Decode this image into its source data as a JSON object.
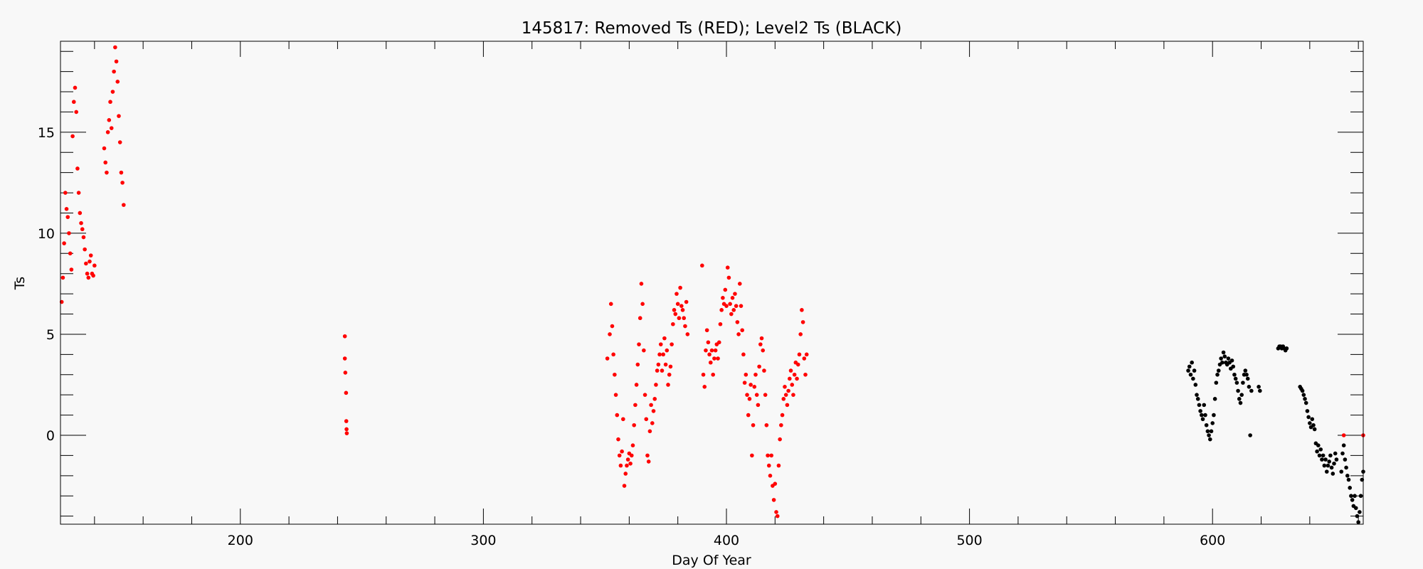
{
  "chart_data": {
    "type": "scatter",
    "title": "145817: Removed Ts (RED); Level2 Ts (BLACK)",
    "xlabel": "Day Of Year",
    "ylabel": "Ts",
    "xlim": [
      126,
      662
    ],
    "ylim": [
      -4.4,
      19.5
    ],
    "x_ticks": [
      200,
      300,
      400,
      500,
      600
    ],
    "y_ticks": [
      0,
      5,
      10,
      15
    ],
    "x_minor_step": 20,
    "y_minor_step": 1,
    "grid": false,
    "legend": "none",
    "series": [
      {
        "color": "#ff0000",
        "points": [
          [
            126.5,
            6.6
          ],
          [
            127,
            7.8
          ],
          [
            127.5,
            9.5
          ],
          [
            128,
            12.0
          ],
          [
            128.5,
            11.2
          ],
          [
            129,
            10.8
          ],
          [
            129.5,
            10.0
          ],
          [
            130,
            9.0
          ],
          [
            130.5,
            8.2
          ],
          [
            131,
            14.8
          ],
          [
            131.5,
            16.5
          ],
          [
            132,
            17.2
          ],
          [
            132.5,
            16.0
          ],
          [
            133,
            13.2
          ],
          [
            133.5,
            12.0
          ],
          [
            134,
            11.0
          ],
          [
            134.5,
            10.5
          ],
          [
            135,
            10.2
          ],
          [
            135.5,
            9.8
          ],
          [
            136,
            9.2
          ],
          [
            136.5,
            8.5
          ],
          [
            137,
            8.0
          ],
          [
            137.5,
            7.8
          ],
          [
            138,
            8.6
          ],
          [
            138.5,
            8.9
          ],
          [
            139,
            8.0
          ],
          [
            139.5,
            7.9
          ],
          [
            140,
            8.4
          ],
          [
            144,
            14.2
          ],
          [
            144.5,
            13.5
          ],
          [
            145,
            13.0
          ],
          [
            145.5,
            15.0
          ],
          [
            146,
            15.6
          ],
          [
            146.5,
            16.5
          ],
          [
            147,
            15.2
          ],
          [
            147.5,
            17.0
          ],
          [
            148,
            18.0
          ],
          [
            148.5,
            19.2
          ],
          [
            149,
            18.5
          ],
          [
            149.5,
            17.5
          ],
          [
            150,
            15.8
          ],
          [
            150.5,
            14.5
          ],
          [
            151,
            13.0
          ],
          [
            151.5,
            12.5
          ],
          [
            152,
            11.4
          ],
          [
            243,
            4.9
          ],
          [
            243,
            3.8
          ],
          [
            243.2,
            3.1
          ],
          [
            243.5,
            2.1
          ],
          [
            243.6,
            0.7
          ],
          [
            243.7,
            0.3
          ],
          [
            243.8,
            0.1
          ],
          [
            351,
            3.8
          ],
          [
            352,
            5.0
          ],
          [
            352.5,
            6.5
          ],
          [
            353,
            5.4
          ],
          [
            353.5,
            4.0
          ],
          [
            354,
            3.0
          ],
          [
            354.5,
            2.0
          ],
          [
            355,
            1.0
          ],
          [
            355.5,
            -0.2
          ],
          [
            356,
            -1.0
          ],
          [
            356.5,
            -1.5
          ],
          [
            357,
            -0.8
          ],
          [
            357.5,
            0.8
          ],
          [
            358,
            -2.5
          ],
          [
            358.5,
            -1.9
          ],
          [
            359,
            -1.5
          ],
          [
            359.5,
            -1.2
          ],
          [
            360,
            -0.9
          ],
          [
            360.5,
            -1.4
          ],
          [
            361,
            -1.0
          ],
          [
            361.5,
            -0.5
          ],
          [
            362,
            0.5
          ],
          [
            362.5,
            1.5
          ],
          [
            363,
            2.5
          ],
          [
            363.5,
            3.5
          ],
          [
            364,
            4.5
          ],
          [
            364.5,
            5.8
          ],
          [
            365,
            7.5
          ],
          [
            365.5,
            6.5
          ],
          [
            366,
            4.2
          ],
          [
            366.5,
            2.0
          ],
          [
            367,
            0.8
          ],
          [
            367.5,
            -1.0
          ],
          [
            368,
            -1.3
          ],
          [
            368.5,
            0.2
          ],
          [
            369,
            1.5
          ],
          [
            369.5,
            0.6
          ],
          [
            370,
            1.2
          ],
          [
            370.5,
            1.8
          ],
          [
            371,
            2.5
          ],
          [
            371.5,
            3.2
          ],
          [
            372,
            3.5
          ],
          [
            372.5,
            4.0
          ],
          [
            373,
            4.5
          ],
          [
            373.5,
            3.2
          ],
          [
            374,
            4.0
          ],
          [
            374.5,
            4.8
          ],
          [
            375,
            3.5
          ],
          [
            375.5,
            4.2
          ],
          [
            376,
            2.5
          ],
          [
            376.5,
            3.0
          ],
          [
            377,
            3.4
          ],
          [
            377.5,
            4.5
          ],
          [
            378,
            5.5
          ],
          [
            378.5,
            6.2
          ],
          [
            379,
            6.0
          ],
          [
            379.5,
            7.0
          ],
          [
            380,
            6.5
          ],
          [
            380.5,
            5.8
          ],
          [
            381,
            7.3
          ],
          [
            381.5,
            6.4
          ],
          [
            382,
            6.2
          ],
          [
            382.5,
            5.8
          ],
          [
            383,
            5.4
          ],
          [
            383.5,
            6.6
          ],
          [
            384,
            5.0
          ],
          [
            390,
            8.4
          ],
          [
            390.5,
            3.0
          ],
          [
            391,
            2.4
          ],
          [
            391.5,
            4.2
          ],
          [
            392,
            5.2
          ],
          [
            392.5,
            4.6
          ],
          [
            393,
            4.0
          ],
          [
            393.5,
            3.6
          ],
          [
            394,
            4.2
          ],
          [
            394.5,
            3.0
          ],
          [
            395,
            3.8
          ],
          [
            395.5,
            4.2
          ],
          [
            396,
            4.5
          ],
          [
            396.5,
            3.8
          ],
          [
            397,
            4.6
          ],
          [
            397.5,
            5.5
          ],
          [
            398,
            6.2
          ],
          [
            398.5,
            6.8
          ],
          [
            399,
            6.5
          ],
          [
            399.5,
            7.2
          ],
          [
            400,
            6.4
          ],
          [
            400.5,
            8.3
          ],
          [
            401,
            7.8
          ],
          [
            401.5,
            6.5
          ],
          [
            402,
            6.0
          ],
          [
            402.5,
            6.8
          ],
          [
            403,
            6.2
          ],
          [
            403.5,
            7.0
          ],
          [
            404,
            6.4
          ],
          [
            404.5,
            5.6
          ],
          [
            405,
            5.0
          ],
          [
            405.5,
            7.5
          ],
          [
            406,
            6.4
          ],
          [
            406.5,
            5.2
          ],
          [
            407,
            4.0
          ],
          [
            407.5,
            2.6
          ],
          [
            408,
            3.0
          ],
          [
            408.5,
            2.0
          ],
          [
            409,
            1.0
          ],
          [
            409.5,
            1.8
          ],
          [
            410,
            2.5
          ],
          [
            410.5,
            -1.0
          ],
          [
            411,
            0.5
          ],
          [
            411.5,
            2.4
          ],
          [
            412,
            3.0
          ],
          [
            412.5,
            2.0
          ],
          [
            413,
            1.5
          ],
          [
            413.5,
            3.4
          ],
          [
            414,
            4.5
          ],
          [
            414.5,
            4.8
          ],
          [
            415,
            4.2
          ],
          [
            415.5,
            3.2
          ],
          [
            416,
            2.0
          ],
          [
            416.5,
            0.5
          ],
          [
            417,
            -1.0
          ],
          [
            417.5,
            -1.5
          ],
          [
            418,
            -2.0
          ],
          [
            418.5,
            -1.0
          ],
          [
            419,
            -2.5
          ],
          [
            419.5,
            -3.2
          ],
          [
            420,
            -2.4
          ],
          [
            420.5,
            -3.8
          ],
          [
            421,
            -4.0
          ],
          [
            421.5,
            -1.5
          ],
          [
            422,
            -0.2
          ],
          [
            422.5,
            0.5
          ],
          [
            423,
            1.0
          ],
          [
            423.5,
            1.8
          ],
          [
            424,
            2.4
          ],
          [
            424.5,
            2.0
          ],
          [
            425,
            1.5
          ],
          [
            425.5,
            2.2
          ],
          [
            426,
            2.8
          ],
          [
            426.5,
            3.2
          ],
          [
            427,
            2.5
          ],
          [
            427.5,
            2.0
          ],
          [
            428,
            3.0
          ],
          [
            428.5,
            3.6
          ],
          [
            429,
            2.8
          ],
          [
            429.5,
            3.5
          ],
          [
            430,
            4.0
          ],
          [
            430.5,
            5.0
          ],
          [
            431,
            6.2
          ],
          [
            431.5,
            5.6
          ],
          [
            432,
            3.8
          ],
          [
            432.5,
            3.0
          ],
          [
            433,
            4.0
          ],
          [
            654,
            0
          ],
          [
            662,
            0
          ]
        ]
      },
      {
        "color": "#000000",
        "points": [
          [
            590,
            3.2
          ],
          [
            590.5,
            3.4
          ],
          [
            591,
            3.0
          ],
          [
            591.5,
            3.6
          ],
          [
            592,
            2.8
          ],
          [
            592.5,
            3.2
          ],
          [
            593,
            2.5
          ],
          [
            593.5,
            2.0
          ],
          [
            594,
            1.8
          ],
          [
            594.5,
            1.5
          ],
          [
            595,
            1.2
          ],
          [
            595.5,
            1.0
          ],
          [
            596,
            0.8
          ],
          [
            596.5,
            1.5
          ],
          [
            597,
            1.0
          ],
          [
            597.5,
            0.5
          ],
          [
            598,
            0.2
          ],
          [
            598.5,
            0.0
          ],
          [
            599,
            -0.2
          ],
          [
            599.5,
            0.2
          ],
          [
            600,
            0.6
          ],
          [
            600.5,
            1.0
          ],
          [
            601,
            1.8
          ],
          [
            601.5,
            2.6
          ],
          [
            602,
            3.0
          ],
          [
            602.5,
            3.2
          ],
          [
            603,
            3.5
          ],
          [
            603.5,
            3.8
          ],
          [
            604,
            3.6
          ],
          [
            604.5,
            4.1
          ],
          [
            605,
            3.9
          ],
          [
            605.5,
            3.6
          ],
          [
            606,
            3.5
          ],
          [
            606.5,
            3.8
          ],
          [
            607,
            3.6
          ],
          [
            607.5,
            3.3
          ],
          [
            608,
            3.7
          ],
          [
            608.5,
            3.4
          ],
          [
            609,
            3.0
          ],
          [
            609.5,
            2.8
          ],
          [
            610,
            2.6
          ],
          [
            610.5,
            2.2
          ],
          [
            611,
            1.8
          ],
          [
            611.5,
            1.6
          ],
          [
            612,
            2.0
          ],
          [
            612.5,
            2.6
          ],
          [
            613,
            3.0
          ],
          [
            613.5,
            3.2
          ],
          [
            614,
            3.0
          ],
          [
            614.5,
            2.8
          ],
          [
            615,
            2.4
          ],
          [
            615.5,
            0.0
          ],
          [
            616,
            2.2
          ],
          [
            619,
            2.4
          ],
          [
            619.5,
            2.2
          ],
          [
            627,
            4.3
          ],
          [
            627.5,
            4.4
          ],
          [
            628,
            4.4
          ],
          [
            628.5,
            4.3
          ],
          [
            629,
            4.4
          ],
          [
            629.5,
            4.3
          ],
          [
            630,
            4.2
          ],
          [
            630.5,
            4.3
          ],
          [
            636,
            2.4
          ],
          [
            636.5,
            2.3
          ],
          [
            637,
            2.2
          ],
          [
            637.5,
            2.0
          ],
          [
            638,
            1.8
          ],
          [
            638.5,
            1.6
          ],
          [
            639,
            1.2
          ],
          [
            639.5,
            0.9
          ],
          [
            640,
            0.6
          ],
          [
            640.5,
            0.4
          ],
          [
            641,
            0.8
          ],
          [
            641.5,
            0.5
          ],
          [
            642,
            0.3
          ],
          [
            642.5,
            -0.4
          ],
          [
            643,
            -0.8
          ],
          [
            643.5,
            -0.5
          ],
          [
            644,
            -1.0
          ],
          [
            644.5,
            -0.7
          ],
          [
            645,
            -1.2
          ],
          [
            645.5,
            -1.0
          ],
          [
            646,
            -1.5
          ],
          [
            646.5,
            -1.2
          ],
          [
            647,
            -1.8
          ],
          [
            647.5,
            -1.5
          ],
          [
            648,
            -1.3
          ],
          [
            648.5,
            -1.0
          ],
          [
            649,
            -1.6
          ],
          [
            649.5,
            -1.9
          ],
          [
            650,
            -1.4
          ],
          [
            650.5,
            -0.9
          ],
          [
            651,
            -1.2
          ],
          [
            653,
            -1.8
          ],
          [
            653.5,
            -0.9
          ],
          [
            654,
            -0.5
          ],
          [
            654.5,
            -1.2
          ],
          [
            655,
            -1.6
          ],
          [
            655.5,
            -2.0
          ],
          [
            656,
            -2.2
          ],
          [
            656.5,
            -2.6
          ],
          [
            657,
            -3.0
          ],
          [
            657.5,
            -3.2
          ],
          [
            658,
            -3.5
          ],
          [
            658.5,
            -3.0
          ],
          [
            659,
            -3.6
          ],
          [
            659.5,
            -4.0
          ],
          [
            660,
            -4.3
          ],
          [
            660.5,
            -3.8
          ],
          [
            661,
            -3.0
          ],
          [
            661.5,
            -2.2
          ],
          [
            662,
            -1.8
          ]
        ]
      }
    ]
  }
}
